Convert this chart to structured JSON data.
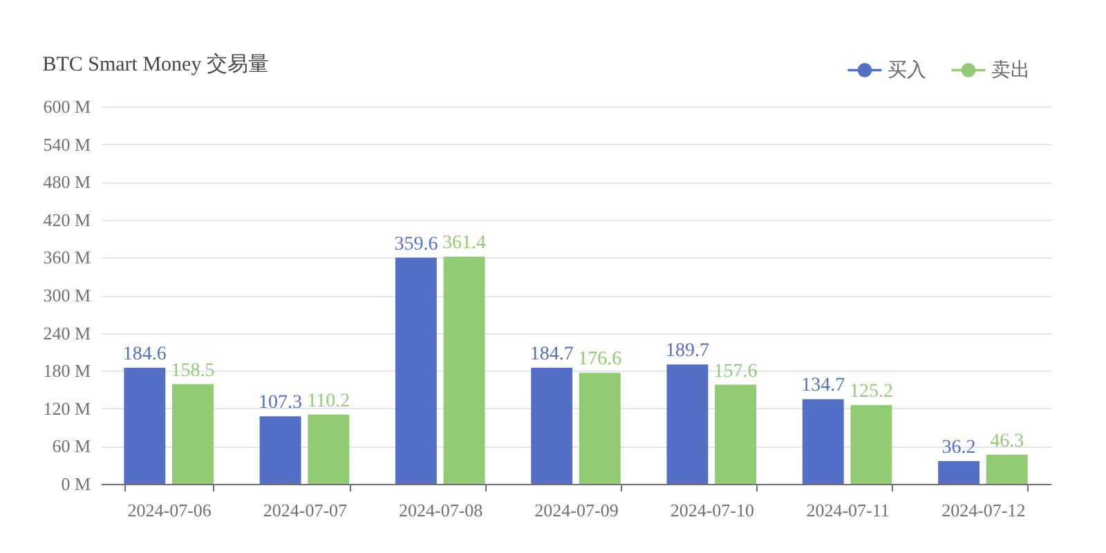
{
  "chart_data": {
    "type": "bar",
    "title": "BTC Smart Money 交易量",
    "categories": [
      "2024-07-06",
      "2024-07-07",
      "2024-07-08",
      "2024-07-09",
      "2024-07-10",
      "2024-07-11",
      "2024-07-12"
    ],
    "series": [
      {
        "name": "买入",
        "color": "#5470c6",
        "values": [
          184.6,
          107.3,
          359.6,
          184.7,
          189.7,
          134.7,
          36.2
        ]
      },
      {
        "name": "卖出",
        "color": "#91cc75",
        "values": [
          158.5,
          110.2,
          361.4,
          176.6,
          157.6,
          125.2,
          46.3
        ]
      }
    ],
    "ylim": [
      0,
      600
    ],
    "yticks": [
      {
        "value": 0,
        "label": "0 M"
      },
      {
        "value": 60,
        "label": "60 M"
      },
      {
        "value": 120,
        "label": "120 M"
      },
      {
        "value": 180,
        "label": "180 M"
      },
      {
        "value": 240,
        "label": "240 M"
      },
      {
        "value": 300,
        "label": "300 M"
      },
      {
        "value": 360,
        "label": "360 M"
      },
      {
        "value": 420,
        "label": "420 M"
      },
      {
        "value": 480,
        "label": "480 M"
      },
      {
        "value": 540,
        "label": "540 M"
      },
      {
        "value": 600,
        "label": "600 M"
      }
    ],
    "grid": "y",
    "legend": "top right",
    "data_labels": true
  }
}
